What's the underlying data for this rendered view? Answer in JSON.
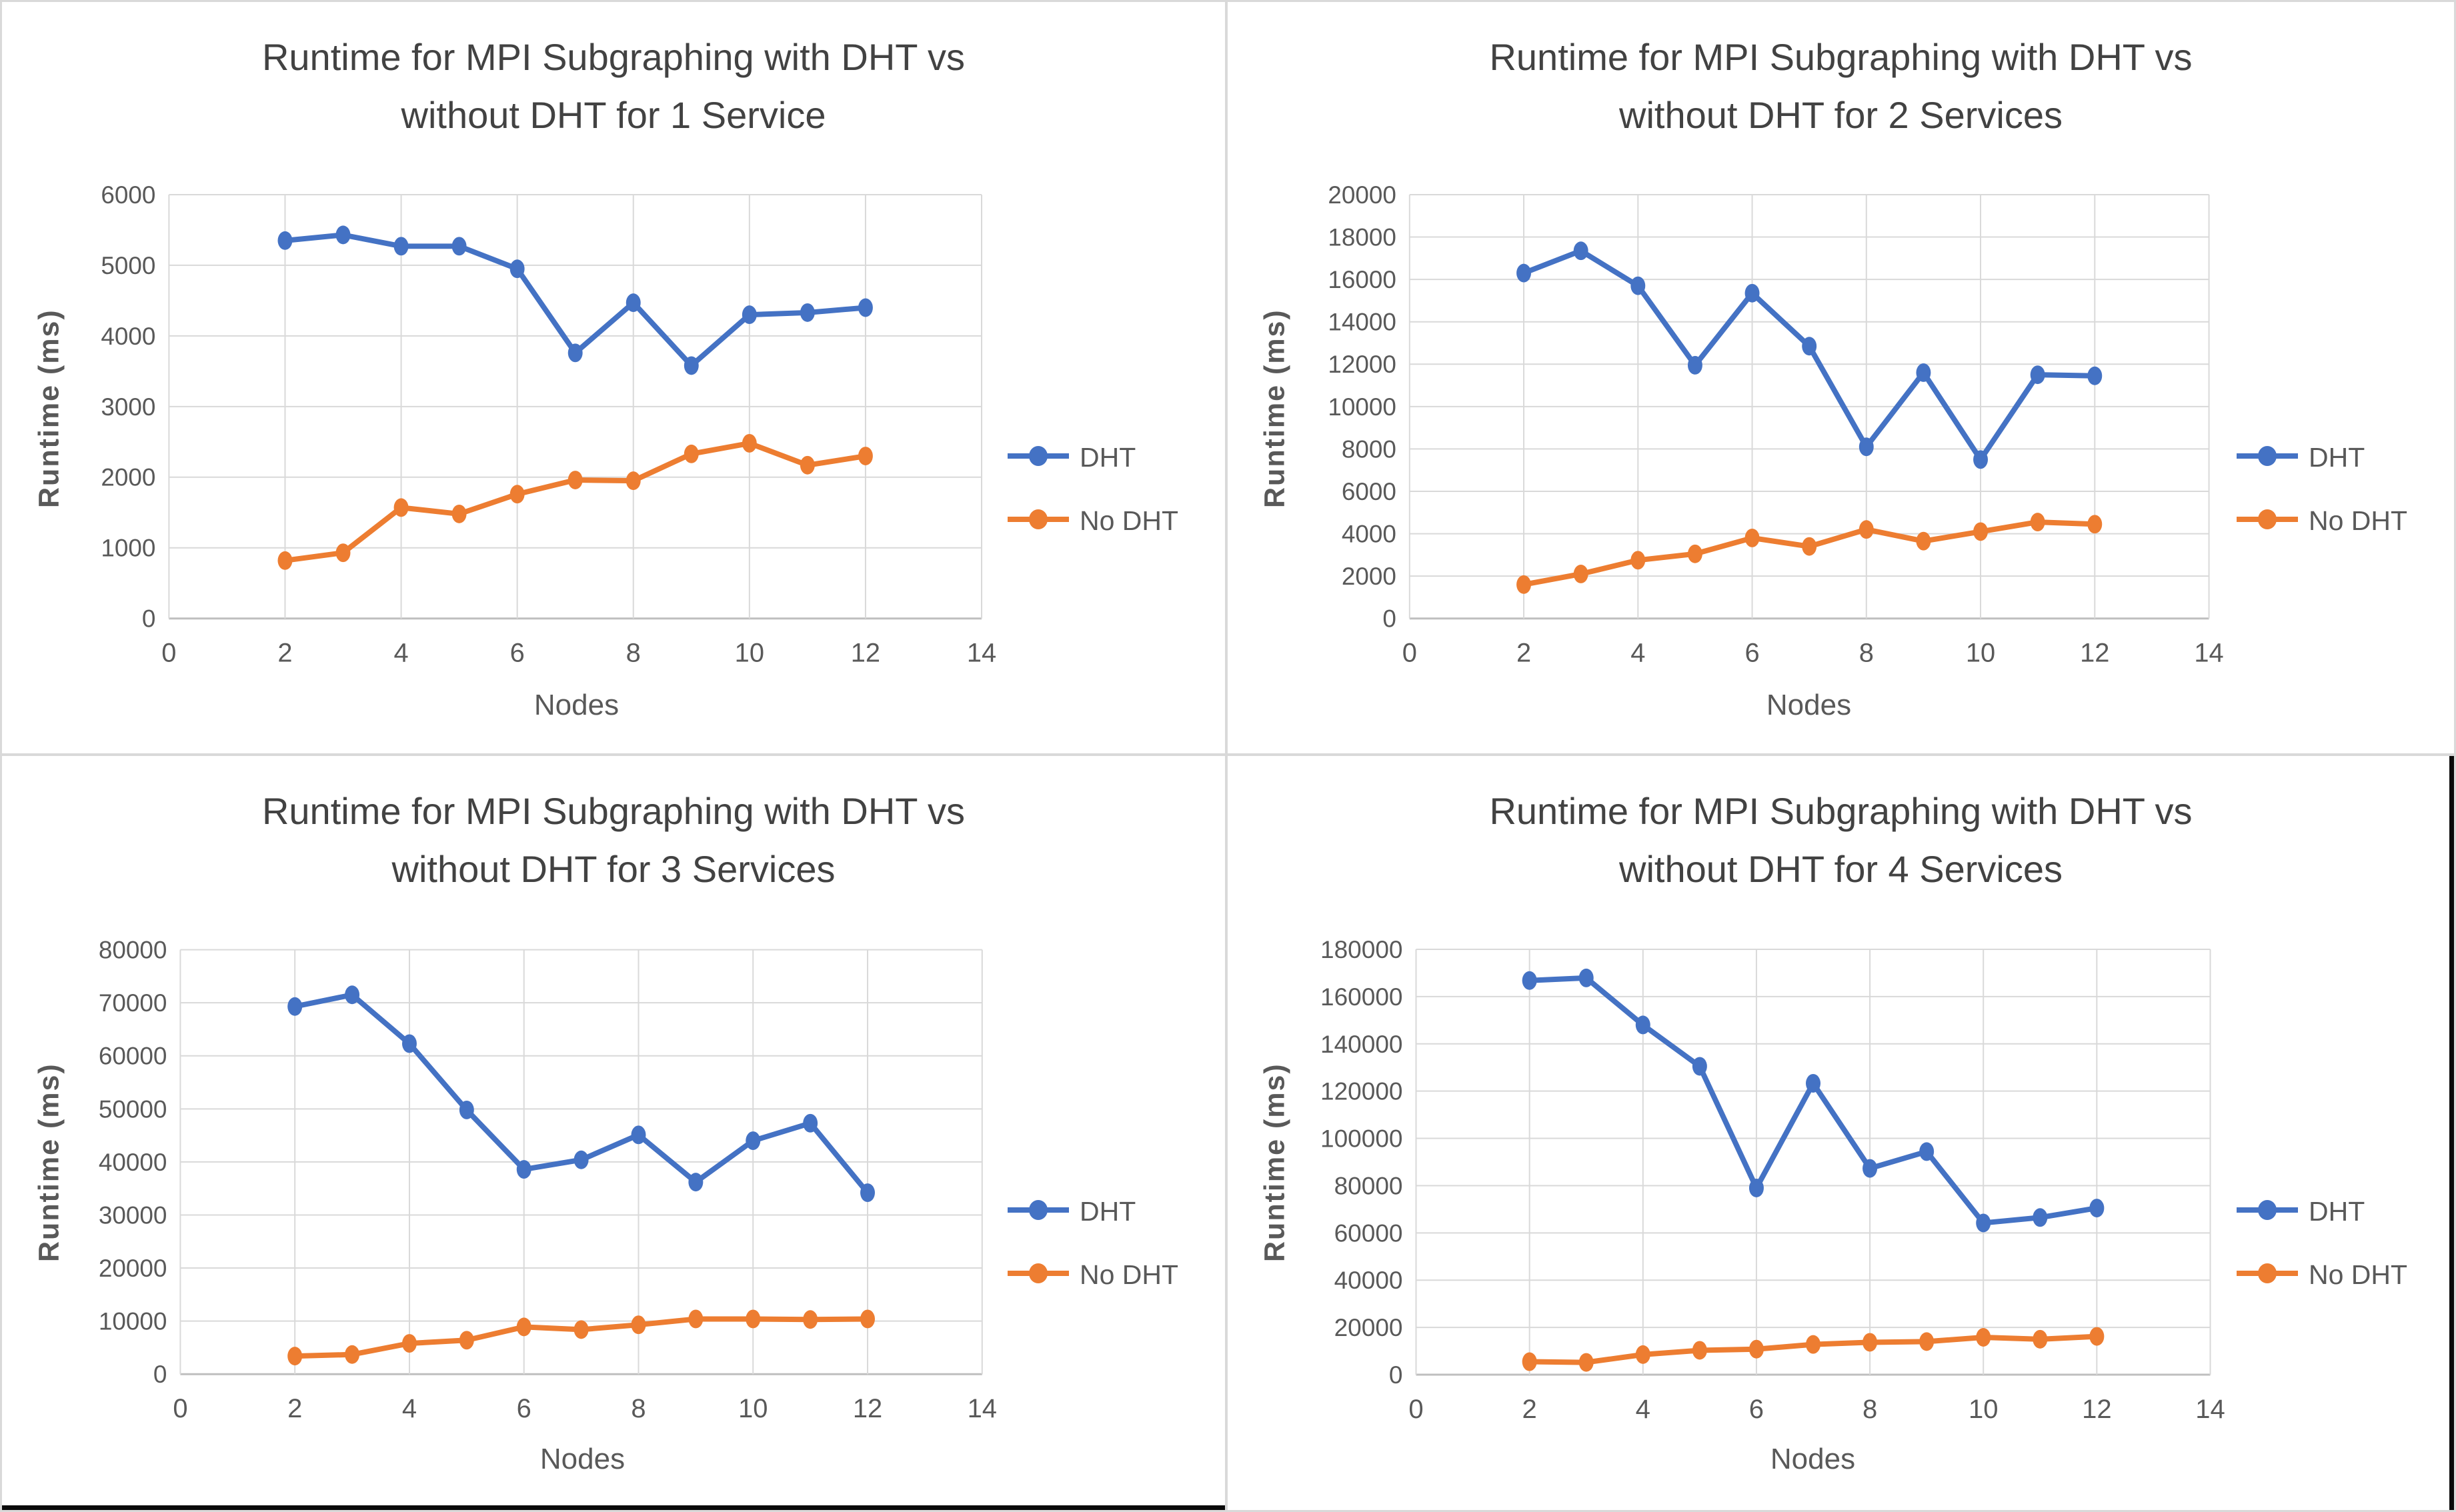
{
  "colors": {
    "dht": "#4472C4",
    "no_dht": "#ED7D31",
    "title_text": "#424242",
    "axis_text": "#595959",
    "gridline": "#D9D9D9",
    "axis_line": "#BFBFBF",
    "black_bar": "#0a0a0a",
    "panel_border": "#d9d9d9"
  },
  "chart_data": [
    {
      "type": "line",
      "title_line1": "Runtime for MPI Subgraphing with DHT vs",
      "title_line2": "without DHT for 1 Service",
      "xlabel": "Nodes",
      "ylabel": "Runtime (ms)",
      "xlim": [
        0,
        14
      ],
      "xticks": [
        0,
        2,
        4,
        6,
        8,
        10,
        12,
        14
      ],
      "ylim": [
        0,
        6000
      ],
      "ytick_step": 1000,
      "grid": true,
      "legend_position": "right",
      "x": [
        2,
        3,
        4,
        5,
        6,
        7,
        8,
        9,
        10,
        11,
        12
      ],
      "series": [
        {
          "name": "DHT",
          "color_key": "dht",
          "values": [
            5350,
            5430,
            5270,
            5270,
            4950,
            3760,
            4470,
            3580,
            4300,
            4330,
            4400
          ]
        },
        {
          "name": "No DHT",
          "color_key": "no_dht",
          "values": [
            820,
            930,
            1570,
            1480,
            1760,
            1960,
            1950,
            2330,
            2480,
            2170,
            2300
          ]
        }
      ]
    },
    {
      "type": "line",
      "title_line1": "Runtime for MPI Subgraphing with DHT vs",
      "title_line2": "without DHT for 2 Services",
      "xlabel": "Nodes",
      "ylabel": "Runtime (ms)",
      "xlim": [
        0,
        14
      ],
      "xticks": [
        0,
        2,
        4,
        6,
        8,
        10,
        12,
        14
      ],
      "ylim": [
        0,
        20000
      ],
      "ytick_step": 2000,
      "grid": true,
      "legend_position": "right",
      "x": [
        2,
        3,
        4,
        5,
        6,
        7,
        8,
        9,
        10,
        11,
        12
      ],
      "series": [
        {
          "name": "DHT",
          "color_key": "dht",
          "values": [
            16300,
            17350,
            15700,
            11950,
            15350,
            12850,
            8100,
            11600,
            7500,
            11500,
            11450
          ]
        },
        {
          "name": "No DHT",
          "color_key": "no_dht",
          "values": [
            1600,
            2100,
            2750,
            3050,
            3800,
            3400,
            4200,
            3650,
            4100,
            4550,
            4450
          ]
        }
      ]
    },
    {
      "type": "line",
      "title_line1": "Runtime for MPI Subgraphing with DHT vs",
      "title_line2": "without DHT for 3 Services",
      "xlabel": "Nodes",
      "ylabel": "Runtime (ms)",
      "xlim": [
        0,
        14
      ],
      "xticks": [
        0,
        2,
        4,
        6,
        8,
        10,
        12,
        14
      ],
      "ylim": [
        0,
        80000
      ],
      "ytick_step": 10000,
      "grid": true,
      "legend_position": "right",
      "x": [
        2,
        3,
        4,
        5,
        6,
        7,
        8,
        9,
        10,
        11,
        12
      ],
      "series": [
        {
          "name": "DHT",
          "color_key": "dht",
          "values": [
            69300,
            71500,
            62300,
            49800,
            38600,
            40400,
            45100,
            36200,
            44000,
            47300,
            34200
          ]
        },
        {
          "name": "No DHT",
          "color_key": "no_dht",
          "values": [
            3400,
            3700,
            5800,
            6400,
            8900,
            8400,
            9300,
            10400,
            10400,
            10300,
            10400
          ]
        }
      ]
    },
    {
      "type": "line",
      "title_line1": "Runtime for MPI Subgraphing with DHT vs",
      "title_line2": "without DHT for 4 Services",
      "xlabel": "Nodes",
      "ylabel": "Runtime (ms)",
      "xlim": [
        0,
        14
      ],
      "xticks": [
        0,
        2,
        4,
        6,
        8,
        10,
        12,
        14
      ],
      "ylim": [
        0,
        180000
      ],
      "ytick_step": 20000,
      "grid": true,
      "legend_position": "right",
      "x": [
        2,
        3,
        4,
        5,
        6,
        7,
        8,
        9,
        10,
        11,
        12
      ],
      "series": [
        {
          "name": "DHT",
          "color_key": "dht",
          "values": [
            166800,
            167900,
            148000,
            130500,
            79000,
            123300,
            87300,
            94400,
            64200,
            66500,
            70500
          ]
        },
        {
          "name": "No DHT",
          "color_key": "no_dht",
          "values": [
            5500,
            5200,
            8500,
            10300,
            10800,
            12800,
            13700,
            14000,
            15800,
            15000,
            16200
          ]
        }
      ]
    }
  ]
}
